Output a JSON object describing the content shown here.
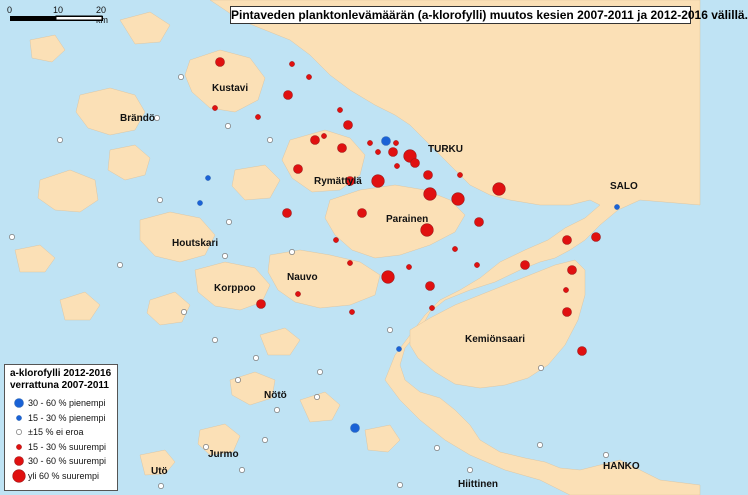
{
  "title": "Pintaveden planktonlevämäärän (a-klorofylli) muutos kesien 2007-2011 ja 2012-2016 välillä.",
  "scale": {
    "labels": [
      "0",
      "10",
      "20 km"
    ]
  },
  "places": [
    {
      "name": "Kustavi"
    },
    {
      "name": "Brändö"
    },
    {
      "name": "TURKU"
    },
    {
      "name": "Rymättylä"
    },
    {
      "name": "SALO"
    },
    {
      "name": "Parainen"
    },
    {
      "name": "Houtskari"
    },
    {
      "name": "Nauvo"
    },
    {
      "name": "Korppoo"
    },
    {
      "name": "Kemiönsaari"
    },
    {
      "name": "Nötö"
    },
    {
      "name": "Jurmo"
    },
    {
      "name": "Utö"
    },
    {
      "name": "Hiittinen"
    },
    {
      "name": "HANKO"
    }
  ],
  "legend": {
    "title_line1": "a-klorofylli 2012-2016",
    "title_line2": "verrattuna 2007-2011",
    "items": [
      {
        "label": "30 - 60 % pienempi",
        "class": "blue-large",
        "color": "#1a62d6"
      },
      {
        "label": "15 - 30 % pienempi",
        "class": "blue-small",
        "color": "#1a62d6"
      },
      {
        "label": "±15 % ei eroa",
        "class": "none",
        "color": "#ffffff"
      },
      {
        "label": "15 - 30 % suurempi",
        "class": "red-small",
        "color": "#e01010"
      },
      {
        "label": "30 - 60 % suurempi",
        "class": "red-medium",
        "color": "#e01010"
      },
      {
        "label": "yli 60 % suurempi",
        "class": "red-large",
        "color": "#e01010"
      }
    ]
  },
  "colors": {
    "sea": "#bfe3f4",
    "land": "#fbe0b6",
    "decrease": "#1a62d6",
    "increase": "#e01010",
    "no_change_fill": "#ffffff",
    "no_change_stroke": "#777777"
  },
  "stations": [
    {
      "class": "red-medium",
      "ref": "Kustavi N"
    },
    {
      "class": "red-small",
      "ref": "Kustavi NE1"
    },
    {
      "class": "red-small",
      "ref": "Kustavi NE2"
    },
    {
      "class": "red-medium",
      "ref": "Kustavi E"
    },
    {
      "class": "red-small",
      "ref": "Kustavi S"
    },
    {
      "class": "red-small",
      "ref": "Taivassalo"
    },
    {
      "class": "red-small",
      "ref": "Askainen"
    },
    {
      "class": "red-small",
      "ref": "Masku"
    },
    {
      "class": "red-medium",
      "ref": "Naantali N"
    },
    {
      "class": "red-medium",
      "ref": "Naantali"
    },
    {
      "class": "red-small",
      "ref": "Naantali S"
    },
    {
      "class": "red-small",
      "ref": "Raisio"
    },
    {
      "class": "blue-large",
      "ref": "Turku W"
    },
    {
      "class": "red-small",
      "ref": "Turku"
    },
    {
      "class": "red-small",
      "ref": "Turku S"
    },
    {
      "class": "red-medium",
      "ref": "Turku port"
    },
    {
      "class": "red-large",
      "ref": "Aura river"
    },
    {
      "class": "red-medium",
      "ref": "Ruissalo"
    },
    {
      "class": "red-medium",
      "ref": "Rymättylä E"
    },
    {
      "class": "red-medium",
      "ref": "Rymättylä N"
    },
    {
      "class": "red-medium",
      "ref": "Rymättylä W"
    },
    {
      "class": "red-large",
      "ref": "Airisto"
    },
    {
      "class": "red-large",
      "ref": "Parainen N"
    },
    {
      "class": "red-large",
      "ref": "Kaarina"
    },
    {
      "class": "red-small",
      "ref": "Kaarina E"
    },
    {
      "class": "red-large",
      "ref": "Piikkiö"
    },
    {
      "class": "red-medium",
      "ref": "Parainen W"
    },
    {
      "class": "red-medium",
      "ref": "Rymättylä S"
    },
    {
      "class": "red-large",
      "ref": "Parainen"
    },
    {
      "class": "red-medium",
      "ref": "Paimio"
    },
    {
      "class": "red-small",
      "ref": "Parainen E"
    },
    {
      "class": "red-small",
      "ref": "Nauvo N"
    },
    {
      "class": "red-small",
      "ref": "Nauvo NE"
    },
    {
      "class": "red-large",
      "ref": "Nauvo E"
    },
    {
      "class": "red-small",
      "ref": "Nauvo SE"
    },
    {
      "class": "red-medium",
      "ref": "Korppoo S"
    },
    {
      "class": "red-small",
      "ref": "Nauvo S"
    },
    {
      "class": "red-small",
      "ref": "Nauvo SW"
    },
    {
      "class": "red-small",
      "ref": "Korppoo SE"
    },
    {
      "class": "red-medium",
      "ref": "Halikko"
    },
    {
      "class": "red-medium",
      "ref": "Halikko S"
    },
    {
      "class": "red-medium",
      "ref": "Salo S"
    },
    {
      "class": "red-medium",
      "ref": "Perniö"
    },
    {
      "class": "red-medium",
      "ref": "Kemiö E"
    },
    {
      "class": "red-medium",
      "ref": "Kemiö S"
    },
    {
      "class": "red-medium",
      "ref": "Kemiö W"
    },
    {
      "class": "red-small",
      "ref": "Kemiö SW"
    },
    {
      "class": "red-small",
      "ref": "Nauvo SSE"
    },
    {
      "class": "red-medium",
      "ref": "Kemiö NE"
    },
    {
      "class": "blue-small",
      "ref": "Salo"
    },
    {
      "class": "blue-small",
      "ref": "Rymättylä W2"
    },
    {
      "class": "blue-small",
      "ref": "Houtskari N"
    },
    {
      "class": "blue-small",
      "ref": "Kemiö central"
    },
    {
      "class": "blue-large",
      "ref": "Nötö S"
    },
    {
      "class": "none",
      "ref": "a"
    },
    {
      "class": "none",
      "ref": "b"
    },
    {
      "class": "none",
      "ref": "c"
    },
    {
      "class": "none",
      "ref": "d"
    },
    {
      "class": "none",
      "ref": "e"
    },
    {
      "class": "none",
      "ref": "f"
    },
    {
      "class": "none",
      "ref": "g"
    },
    {
      "class": "none",
      "ref": "h"
    },
    {
      "class": "none",
      "ref": "i"
    },
    {
      "class": "none",
      "ref": "j"
    },
    {
      "class": "none",
      "ref": "k"
    },
    {
      "class": "none",
      "ref": "l"
    },
    {
      "class": "none",
      "ref": "m"
    },
    {
      "class": "none",
      "ref": "n"
    },
    {
      "class": "none",
      "ref": "o"
    },
    {
      "class": "none",
      "ref": "p"
    },
    {
      "class": "none",
      "ref": "q"
    },
    {
      "class": "none",
      "ref": "r"
    },
    {
      "class": "none",
      "ref": "s"
    },
    {
      "class": "none",
      "ref": "t"
    },
    {
      "class": "none",
      "ref": "u"
    },
    {
      "class": "none",
      "ref": "v"
    },
    {
      "class": "none",
      "ref": "w"
    },
    {
      "class": "none",
      "ref": "x"
    },
    {
      "class": "none",
      "ref": "y"
    },
    {
      "class": "none",
      "ref": "z"
    },
    {
      "class": "none",
      "ref": "aa"
    },
    {
      "class": "none",
      "ref": "ab"
    },
    {
      "class": "none",
      "ref": "ac"
    }
  ]
}
